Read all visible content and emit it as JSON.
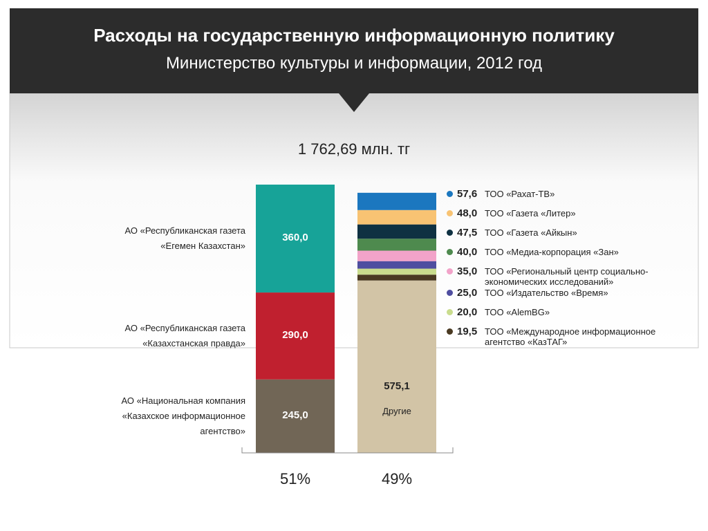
{
  "chart_data": {
    "type": "stacked-bar",
    "title": "Расходы на государственную информационную политику",
    "subtitle": "Министерство культуры и информации, 2012 год",
    "total_label": "1 762,69 млн. тг",
    "bars": [
      {
        "share": {
          "value": 51,
          "label": "51%"
        },
        "segments": [
          {
            "name": "АО «Национальная компания «Казахское информационное агентство»",
            "value": 245.0,
            "value_label": "245,0",
            "color": "#716656"
          },
          {
            "name": "АО «Республиканская газета «Казахстанская правда»",
            "value": 290.0,
            "value_label": "290,0",
            "color": "#c0202f"
          },
          {
            "name": "АО «Республиканская газета «Егемен Казахстан»",
            "value": 360.0,
            "value_label": "360,0",
            "color": "#17a398"
          }
        ]
      },
      {
        "share": {
          "value": 49,
          "label": "49%"
        },
        "segments": [
          {
            "name": "Другие",
            "value": 575.1,
            "value_label": "575,1",
            "color": "#d2c4a6"
          },
          {
            "name": "ТОО «Международное информационное агентство «КазТАГ»",
            "value": 19.5,
            "value_label": "19,5",
            "color": "#4a3a22"
          },
          {
            "name": "ТОО «AlemBG»",
            "value": 20.0,
            "value_label": "20,0",
            "color": "#c9dc8d"
          },
          {
            "name": "ТОО «Издательство «Время»",
            "value": 25.0,
            "value_label": "25,0",
            "color": "#4f4ea0"
          },
          {
            "name": "ТОО «Региональный центр социально-экономических исследований»",
            "value": 35.0,
            "value_label": "35,0",
            "color": "#f2a3c9"
          },
          {
            "name": "ТОО «Медиа-корпорация «Зан»",
            "value": 40.0,
            "value_label": "40,0",
            "color": "#4e8a4e"
          },
          {
            "name": "ТОО «Газета «Айкын»",
            "value": 47.5,
            "value_label": "47,5",
            "color": "#0f3142"
          },
          {
            "name": "ТОО «Газета «Литер»",
            "value": 48.0,
            "value_label": "48,0",
            "color": "#f8c373"
          },
          {
            "name": "ТОО «Рахат-ТВ»",
            "value": 57.6,
            "value_label": "57,6",
            "color": "#1b77bf"
          }
        ]
      }
    ]
  }
}
